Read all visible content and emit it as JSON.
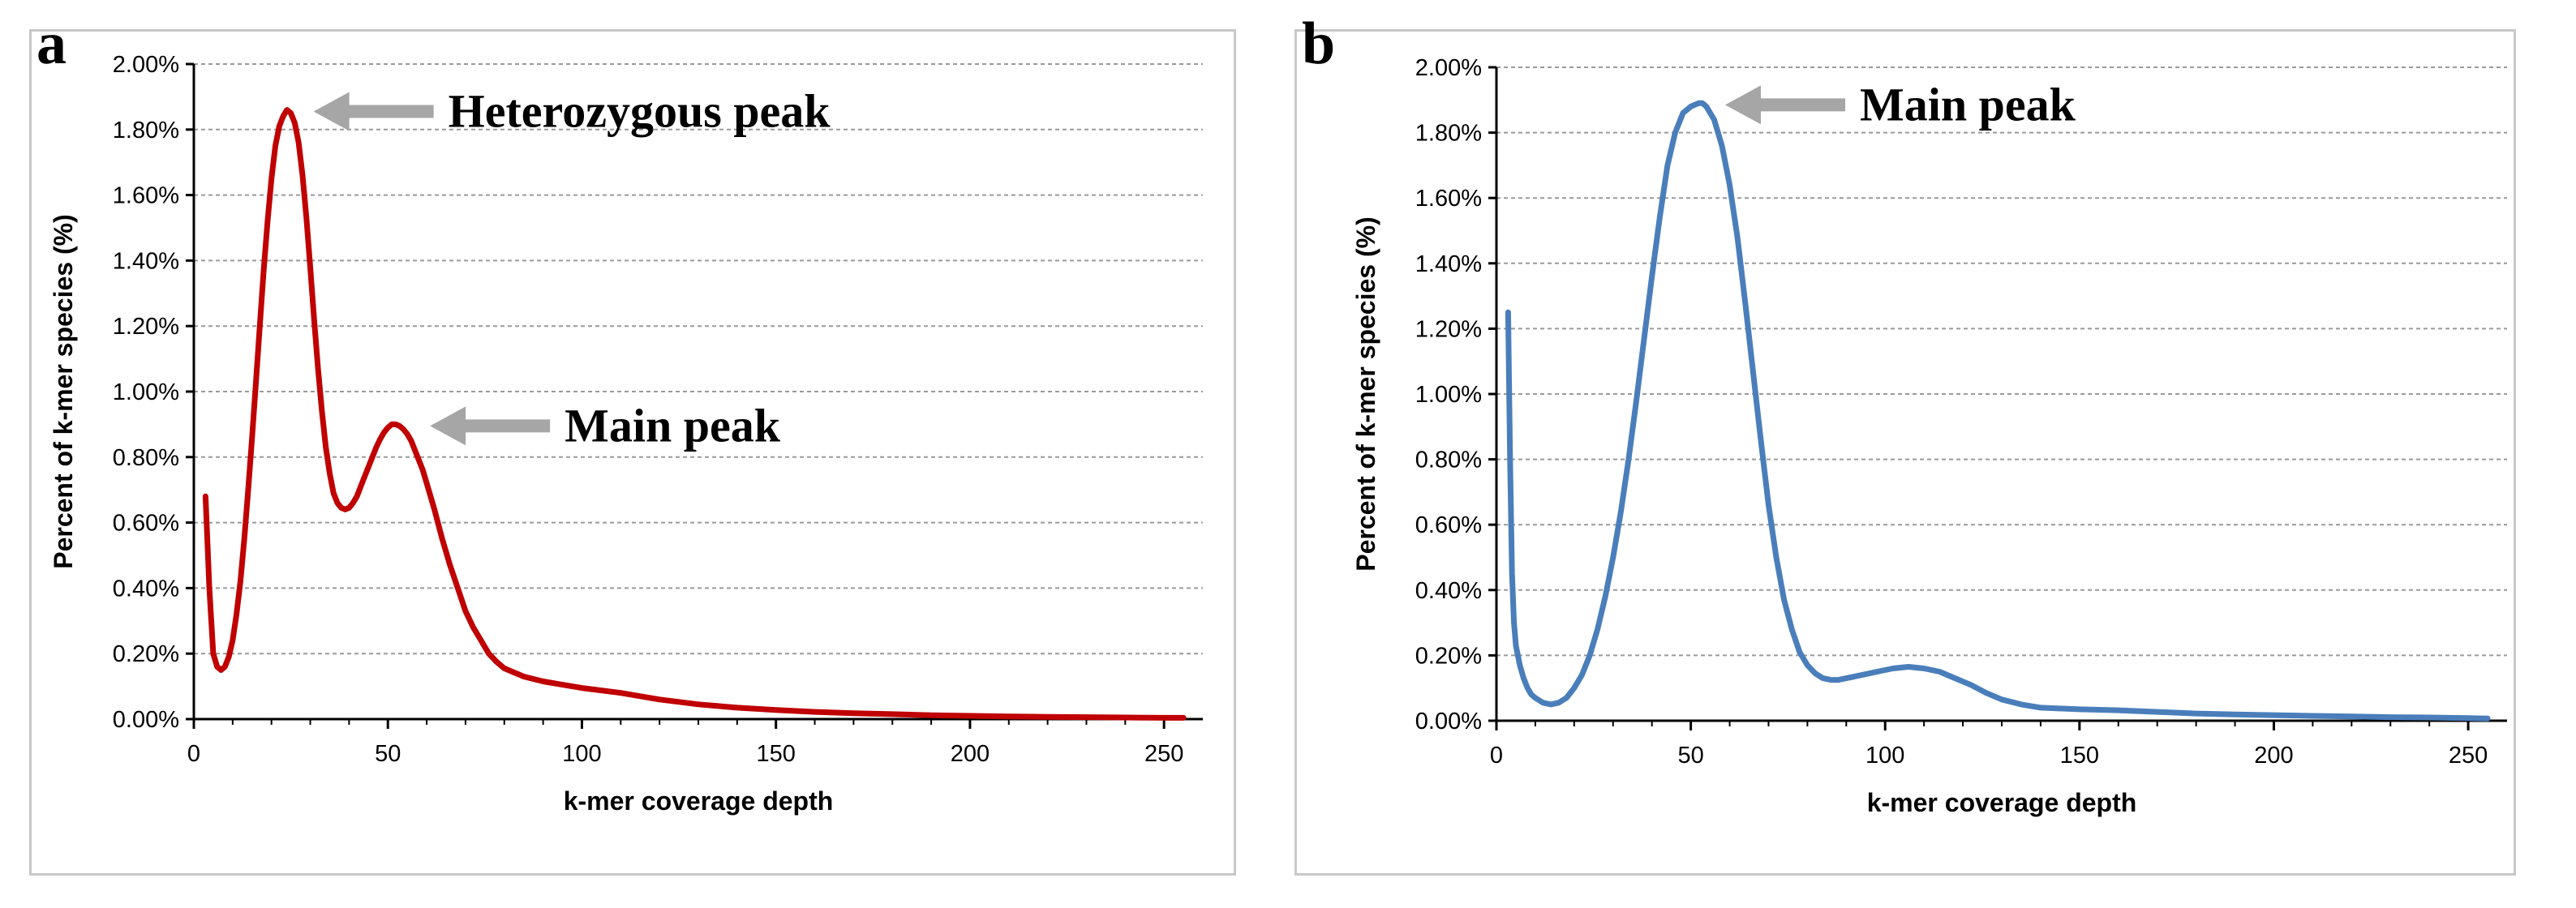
{
  "chart_data": [
    {
      "panel_label": "a",
      "type": "line",
      "xlabel": "k-mer coverage depth",
      "ylabel": "Percent of k-mer species (%)",
      "xlim": [
        0,
        260
      ],
      "ylim": [
        0,
        2.0
      ],
      "x_ticks": [
        0,
        50,
        100,
        150,
        200,
        250
      ],
      "x_tick_labels": [
        "0",
        "50",
        "100",
        "150",
        "200",
        "250"
      ],
      "y_ticks": [
        0,
        0.2,
        0.4,
        0.6,
        0.8,
        1.0,
        1.2,
        1.4,
        1.6,
        1.8,
        2.0
      ],
      "y_tick_labels": [
        "0.00%",
        "0.20%",
        "0.40%",
        "0.60%",
        "0.80%",
        "1.00%",
        "1.20%",
        "1.40%",
        "1.60%",
        "1.80%",
        "2.00%"
      ],
      "grid": "horizontal dashed",
      "series": [
        {
          "color": "#c00000",
          "x": [
            3,
            4,
            5,
            6,
            7,
            8,
            9,
            10,
            11,
            12,
            13,
            14,
            15,
            16,
            17,
            18,
            19,
            20,
            21,
            22,
            23,
            24,
            25,
            26,
            27,
            28,
            29,
            30,
            31,
            32,
            33,
            34,
            35,
            36,
            37,
            38,
            39,
            40,
            41,
            42,
            43,
            44,
            45,
            46,
            47,
            48,
            49,
            50,
            51,
            52,
            53,
            54,
            55,
            56,
            57,
            58,
            59,
            60,
            62,
            64,
            66,
            68,
            70,
            72,
            74,
            76,
            78,
            80,
            85,
            90,
            95,
            100,
            110,
            120,
            130,
            140,
            150,
            160,
            170,
            180,
            190,
            200,
            210,
            220,
            230,
            240,
            250,
            255
          ],
          "y": [
            0.68,
            0.4,
            0.2,
            0.16,
            0.15,
            0.16,
            0.19,
            0.24,
            0.32,
            0.42,
            0.55,
            0.7,
            0.86,
            1.03,
            1.2,
            1.37,
            1.52,
            1.65,
            1.75,
            1.81,
            1.84,
            1.86,
            1.85,
            1.82,
            1.76,
            1.66,
            1.53,
            1.38,
            1.22,
            1.07,
            0.94,
            0.83,
            0.75,
            0.69,
            0.66,
            0.645,
            0.64,
            0.645,
            0.66,
            0.68,
            0.71,
            0.74,
            0.77,
            0.8,
            0.83,
            0.855,
            0.875,
            0.89,
            0.9,
            0.9,
            0.895,
            0.885,
            0.87,
            0.85,
            0.82,
            0.79,
            0.76,
            0.72,
            0.64,
            0.55,
            0.47,
            0.4,
            0.33,
            0.28,
            0.24,
            0.2,
            0.175,
            0.155,
            0.13,
            0.115,
            0.105,
            0.095,
            0.08,
            0.06,
            0.045,
            0.035,
            0.028,
            0.022,
            0.018,
            0.015,
            0.012,
            0.01,
            0.008,
            0.007,
            0.006,
            0.005,
            0.004,
            0.004
          ]
        }
      ],
      "annotations": [
        {
          "text": "Heterozygous peak",
          "x": 25,
          "y": 1.86
        },
        {
          "text": "Main peak",
          "x": 55,
          "y": 0.9
        }
      ]
    },
    {
      "panel_label": "b",
      "type": "line",
      "xlabel": "k-mer coverage depth",
      "ylabel": "Percent of k-mer species (%)",
      "xlim": [
        0,
        260
      ],
      "ylim": [
        0,
        2.0
      ],
      "x_ticks": [
        0,
        50,
        100,
        150,
        200,
        250
      ],
      "x_tick_labels": [
        "0",
        "50",
        "100",
        "150",
        "200",
        "250"
      ],
      "y_ticks": [
        0,
        0.2,
        0.4,
        0.6,
        0.8,
        1.0,
        1.2,
        1.4,
        1.6,
        1.8,
        2.0
      ],
      "y_tick_labels": [
        "0.00%",
        "0.20%",
        "0.40%",
        "0.60%",
        "0.80%",
        "1.00%",
        "1.20%",
        "1.40%",
        "1.60%",
        "1.80%",
        "2.00%"
      ],
      "grid": "horizontal dashed",
      "series": [
        {
          "color": "#4a7ebb",
          "x": [
            3,
            3.5,
            4,
            4.5,
            5,
            6,
            7,
            8,
            9,
            10,
            12,
            14,
            16,
            18,
            20,
            22,
            24,
            26,
            28,
            30,
            32,
            34,
            36,
            38,
            40,
            42,
            44,
            46,
            48,
            50,
            52,
            53,
            54,
            56,
            58,
            60,
            62,
            64,
            66,
            68,
            70,
            72,
            74,
            76,
            78,
            80,
            82,
            84,
            86,
            88,
            90,
            94,
            98,
            102,
            106,
            110,
            114,
            118,
            122,
            126,
            130,
            135,
            140,
            150,
            160,
            170,
            180,
            190,
            200,
            210,
            220,
            230,
            240,
            250,
            255
          ],
          "y": [
            1.25,
            0.8,
            0.45,
            0.3,
            0.23,
            0.17,
            0.13,
            0.1,
            0.08,
            0.07,
            0.055,
            0.05,
            0.055,
            0.07,
            0.1,
            0.14,
            0.2,
            0.28,
            0.38,
            0.5,
            0.64,
            0.8,
            0.98,
            1.17,
            1.36,
            1.54,
            1.7,
            1.8,
            1.86,
            1.88,
            1.89,
            1.89,
            1.88,
            1.84,
            1.76,
            1.64,
            1.48,
            1.28,
            1.07,
            0.86,
            0.66,
            0.5,
            0.37,
            0.28,
            0.21,
            0.17,
            0.145,
            0.13,
            0.125,
            0.125,
            0.13,
            0.14,
            0.15,
            0.16,
            0.165,
            0.16,
            0.15,
            0.13,
            0.11,
            0.085,
            0.065,
            0.05,
            0.04,
            0.035,
            0.032,
            0.027,
            0.022,
            0.019,
            0.017,
            0.015,
            0.013,
            0.011,
            0.01,
            0.008,
            0.007
          ]
        }
      ],
      "annotations": [
        {
          "text": "Main peak",
          "x": 53,
          "y": 1.89
        }
      ]
    }
  ]
}
